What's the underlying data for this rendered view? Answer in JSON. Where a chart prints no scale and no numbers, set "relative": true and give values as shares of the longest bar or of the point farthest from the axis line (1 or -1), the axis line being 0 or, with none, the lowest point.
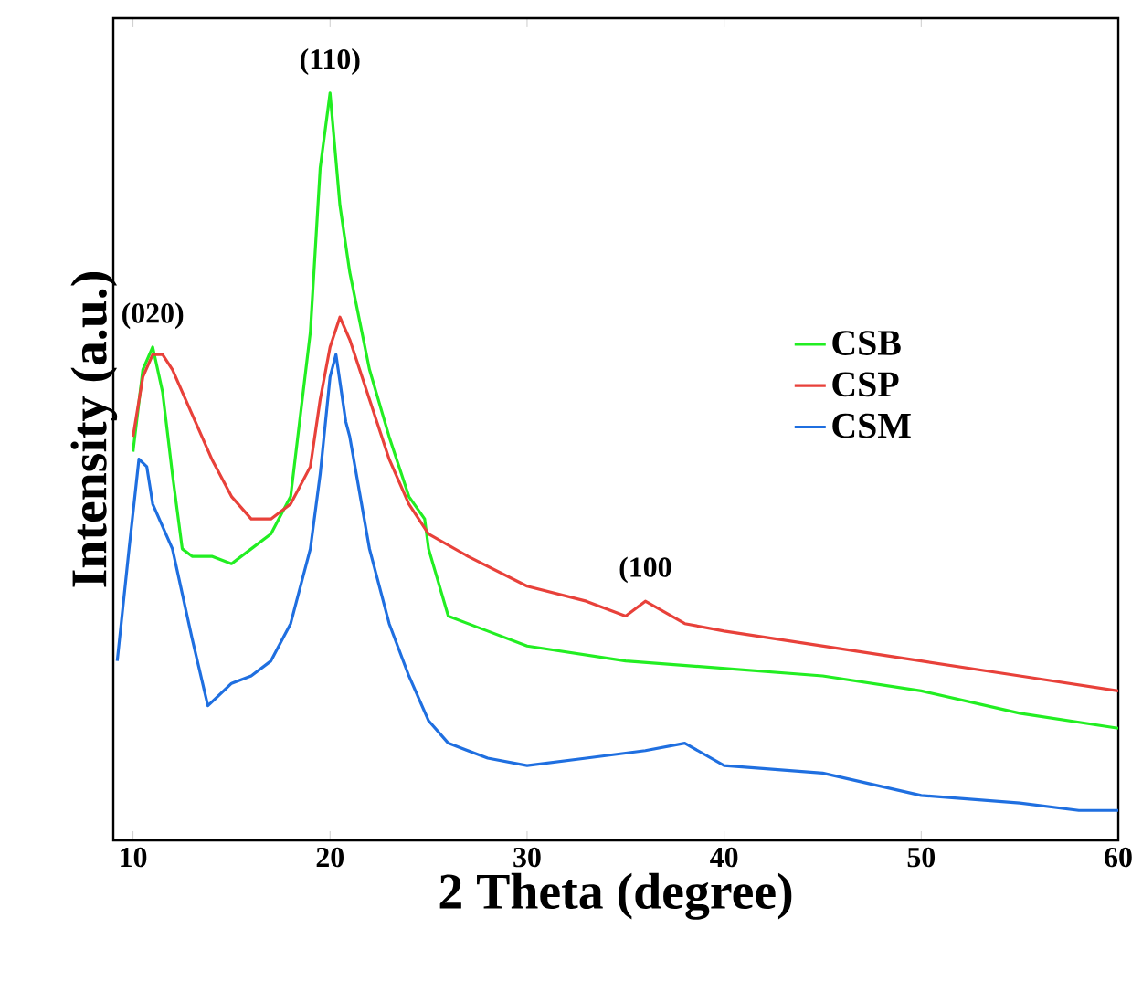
{
  "chart_data": {
    "type": "line",
    "relative": true,
    "xlabel": "2 Theta (degree)",
    "ylabel": "Intensity (a.u.)",
    "xlim": [
      9,
      60
    ],
    "xticks": [
      10,
      20,
      30,
      40,
      50,
      60
    ],
    "legend": "right",
    "tick_labels": "x",
    "annotations": [
      {
        "text": "(020)",
        "x": 11,
        "y": 0.66
      },
      {
        "text": "(110)",
        "x": 20,
        "y": 1.0
      },
      {
        "text": "(100",
        "x": 36,
        "y": 0.32
      }
    ],
    "series": [
      {
        "name": "CSB",
        "color": "#22ee22",
        "x": [
          10,
          10.5,
          11,
          11.5,
          12,
          12.5,
          13,
          14,
          15,
          16,
          17,
          18,
          19,
          19.5,
          20,
          20.5,
          21,
          22,
          23,
          24,
          24.8,
          25,
          26,
          28,
          30,
          35,
          40,
          45,
          50,
          55,
          60
        ],
        "values": [
          0.52,
          0.63,
          0.66,
          0.6,
          0.49,
          0.39,
          0.38,
          0.38,
          0.37,
          0.39,
          0.41,
          0.46,
          0.68,
          0.9,
          1.0,
          0.85,
          0.76,
          0.63,
          0.54,
          0.46,
          0.43,
          0.39,
          0.3,
          0.28,
          0.26,
          0.24,
          0.23,
          0.22,
          0.2,
          0.17,
          0.15
        ]
      },
      {
        "name": "CSP",
        "color": "#e8413a",
        "x": [
          10,
          10.5,
          11,
          11.5,
          12,
          13,
          14,
          15,
          16,
          17,
          18,
          19,
          19.5,
          20,
          20.5,
          21,
          22,
          23,
          24,
          25,
          27,
          30,
          33,
          35,
          36,
          38,
          40,
          45,
          50,
          55,
          60
        ],
        "values": [
          0.54,
          0.62,
          0.65,
          0.65,
          0.63,
          0.57,
          0.51,
          0.46,
          0.43,
          0.43,
          0.45,
          0.5,
          0.59,
          0.66,
          0.7,
          0.67,
          0.59,
          0.51,
          0.45,
          0.41,
          0.38,
          0.34,
          0.32,
          0.3,
          0.32,
          0.29,
          0.28,
          0.26,
          0.24,
          0.22,
          0.2
        ]
      },
      {
        "name": "CSM",
        "color": "#1f6fe0",
        "x": [
          9.2,
          9.8,
          10.3,
          10.7,
          11,
          12,
          13,
          13.8,
          15,
          16,
          17,
          18,
          19,
          19.5,
          20,
          20.3,
          20.8,
          21,
          22,
          23,
          24,
          25,
          26,
          28,
          30,
          33,
          36,
          38,
          40,
          45,
          50,
          55,
          58,
          60
        ],
        "values": [
          0.24,
          0.39,
          0.51,
          0.5,
          0.45,
          0.39,
          0.27,
          0.18,
          0.21,
          0.22,
          0.24,
          0.29,
          0.39,
          0.49,
          0.62,
          0.65,
          0.56,
          0.54,
          0.39,
          0.29,
          0.22,
          0.16,
          0.13,
          0.11,
          0.1,
          0.11,
          0.12,
          0.13,
          0.1,
          0.09,
          0.06,
          0.05,
          0.04,
          0.04
        ]
      }
    ]
  }
}
